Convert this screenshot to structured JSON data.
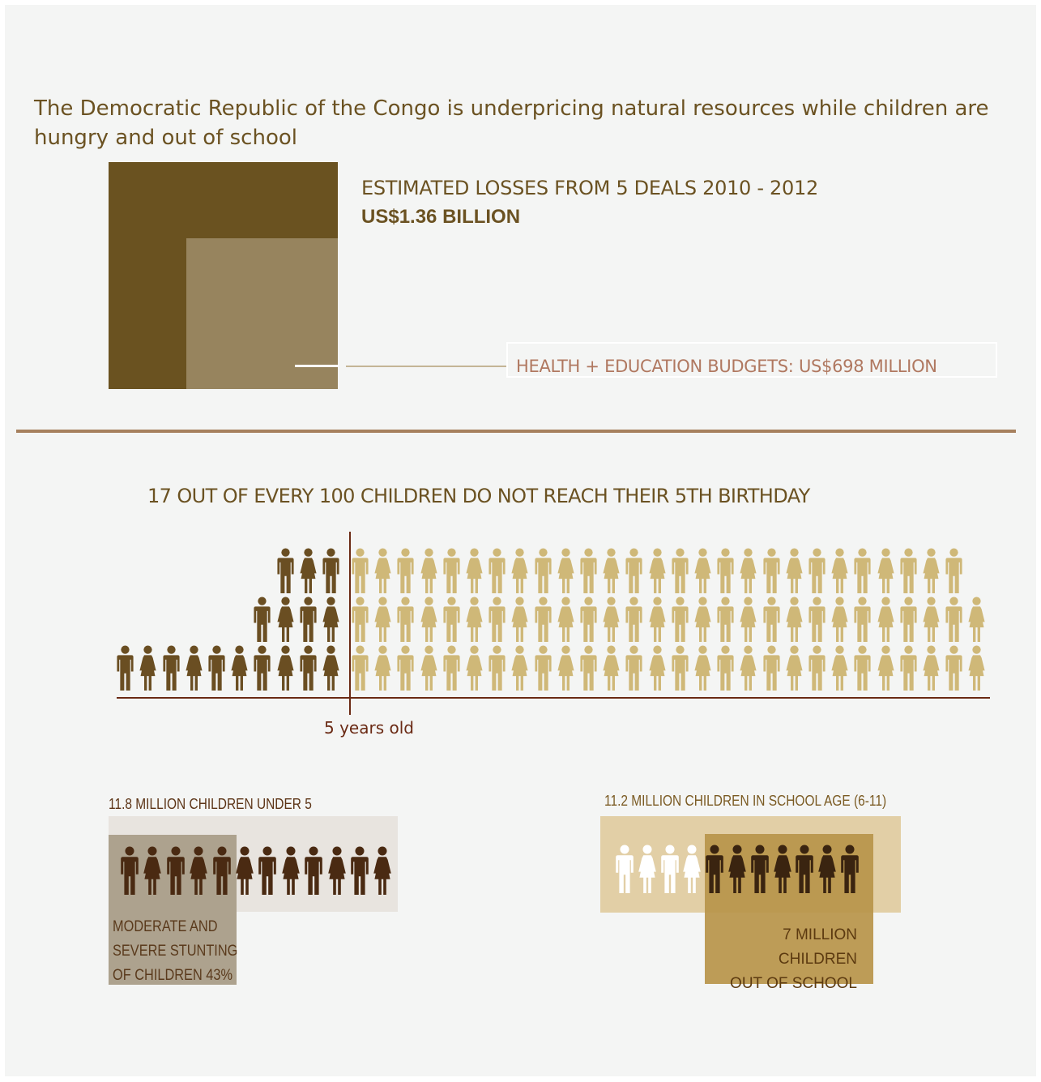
{
  "headline": "The Democratic Republic of the Congo is underpricing natural resources while children are hungry and out of school",
  "losses": {
    "label": "ESTIMATED LOSSES FROM 5 DEALS 2010 - 2012",
    "value": "US$1.36 BILLION",
    "budget_label": "HEALTH + EDUCATION BUDGETS: US$698 MILLION",
    "colors": {
      "losses": "#6a5220",
      "budgets": "#97845e"
    }
  },
  "mortality": {
    "title": "17 OUT OF EVERY 100 CHILDREN DO NOT REACH THEIR 5TH BIRTHDAY",
    "age_label": "5 years old",
    "children_total": 100,
    "children_not_reaching_5": 17,
    "colors": {
      "died": "#6a4e22",
      "survived": "#cfb878"
    },
    "icon": "person-icon"
  },
  "under5": {
    "title": "11.8 MILLION CHILDREN  UNDER 5",
    "stunting_label": "MODERATE AND\nSEVERE  STUNTING\nOF CHILDREN 43%",
    "stunting_percent": 43,
    "icon_count": 12,
    "icon_color": "#4a2a12"
  },
  "school": {
    "title": "11.2 MILLION CHILDREN  IN SCHOOL AGE (6-11)",
    "out_of_school_label": "7 MILLION CHILDREN\nOUT OF SCHOOL",
    "icon_count": 11,
    "in_school_icons": 4,
    "colors": {
      "in_school": "#ffffff",
      "out_of_school": "#3a2410"
    }
  }
}
